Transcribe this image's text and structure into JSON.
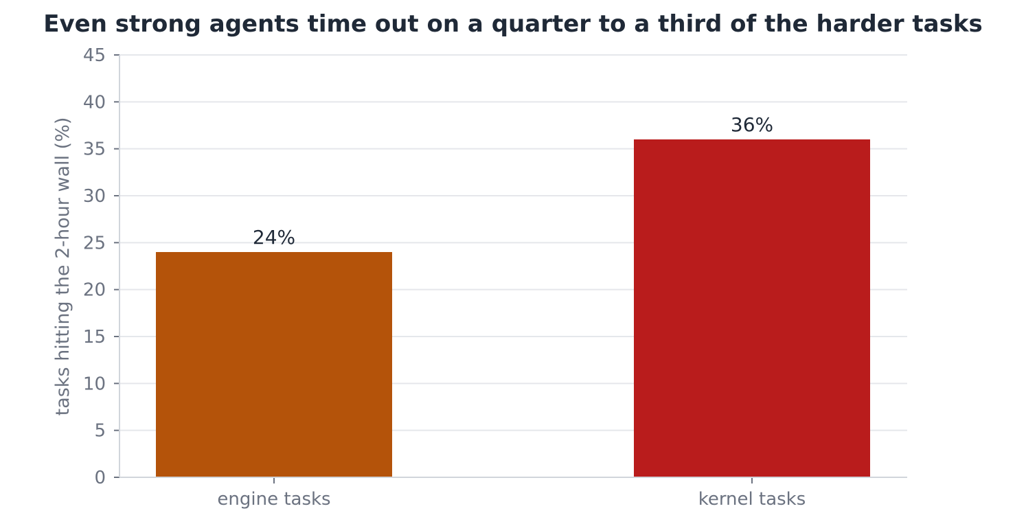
{
  "chart_data": {
    "type": "bar",
    "title": "Even strong agents time out on a quarter to a third of the harder tasks",
    "xlabel": "",
    "ylabel": "tasks hitting the 2-hour wall (%)",
    "categories": [
      "engine tasks",
      "kernel tasks"
    ],
    "values": [
      24,
      36
    ],
    "value_labels": [
      "24%",
      "36%"
    ],
    "colors": [
      "#b4530a",
      "#b91c1c"
    ],
    "ylim": [
      0,
      45
    ],
    "yticks": [
      0,
      5,
      10,
      15,
      20,
      25,
      30,
      35,
      40,
      45
    ],
    "grid": true,
    "legend": "none"
  }
}
